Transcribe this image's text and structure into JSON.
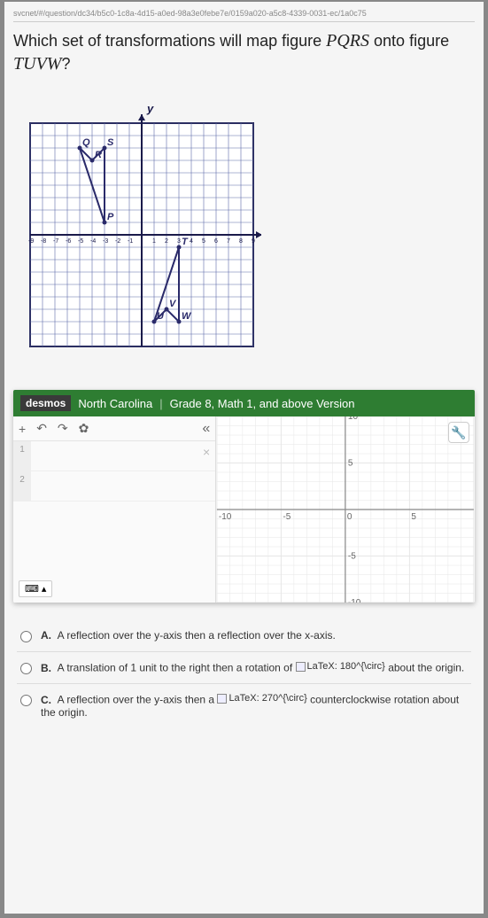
{
  "url_fragment": "svcnet/#/question/dc34/b5c0-1c8a-4d15-a0ed-98a3e0febe7e/0159a020-a5c8-4339-0031-ec/1a0c75",
  "question_prefix": "Which set of transformations will map figure ",
  "question_fig1": "PQRS",
  "question_mid": " onto figure ",
  "question_fig2": "TUVW",
  "question_suffix": "?",
  "diagram": {
    "axis_labels": {
      "x": "x",
      "y": "y"
    },
    "grid": {
      "xmin": -9,
      "xmax": 9,
      "ymin": -9,
      "ymax": 9,
      "step": 1,
      "cell": 14
    },
    "tick_labels_x_neg": [
      "-9",
      "-8",
      "-7",
      "-6",
      "-5",
      "-4",
      "-3",
      "-2",
      "-1"
    ],
    "tick_labels_x_pos": [
      "1",
      "2",
      "3",
      "4",
      "5",
      "6",
      "7",
      "8",
      "9"
    ],
    "shape_PQRS": {
      "points": {
        "P": [
          -3,
          1
        ],
        "Q": [
          -5,
          7
        ],
        "R": [
          -4,
          6
        ],
        "S": [
          -3,
          7
        ]
      },
      "color": "#2a2a6a"
    },
    "shape_TUVW": {
      "points": {
        "T": [
          3,
          -1
        ],
        "U": [
          1,
          -7
        ],
        "V": [
          2,
          -6
        ],
        "W": [
          3,
          -7
        ]
      },
      "color": "#2a2a6a"
    },
    "grid_color": "#5e6aa8",
    "axis_color": "#1a1a4a"
  },
  "desmos": {
    "logo": "desmos",
    "region": "North Carolina",
    "version": "Grade 8, Math 1, and above Version",
    "toolbar": {
      "plus": "+",
      "undo": "↶",
      "redo": "↷",
      "gear": "✿",
      "collapse": "«"
    },
    "rows": [
      "1",
      "2"
    ],
    "close_x": "×",
    "graph": {
      "xlim": [
        -10,
        10
      ],
      "ylim": [
        -10,
        10
      ],
      "xticks": [
        -10,
        -5,
        0,
        5,
        10
      ],
      "yticks": [
        -10,
        -5,
        5,
        10
      ],
      "grid_color": "#e6e6e6",
      "axis_color": "#888",
      "label_color": "#666",
      "label_fontsize": 10
    },
    "wrench": "🔧",
    "keyboard_icon": "⌨",
    "keyboard_arrow": "▴"
  },
  "answers": {
    "A": {
      "label": "A.",
      "text": "A reflection over the y-axis then a reflection over the x-axis."
    },
    "B": {
      "label": "B.",
      "pre": "A translation of 1 unit to the right then a rotation of ",
      "latex": "LaTeX: 180^{\\circ}",
      "post": " about the origin."
    },
    "C": {
      "label": "C.",
      "pre": "A reflection over the y-axis then a ",
      "latex": "LaTeX: 270^{\\circ}",
      "post": "counterclockwise rotation about the origin."
    }
  }
}
